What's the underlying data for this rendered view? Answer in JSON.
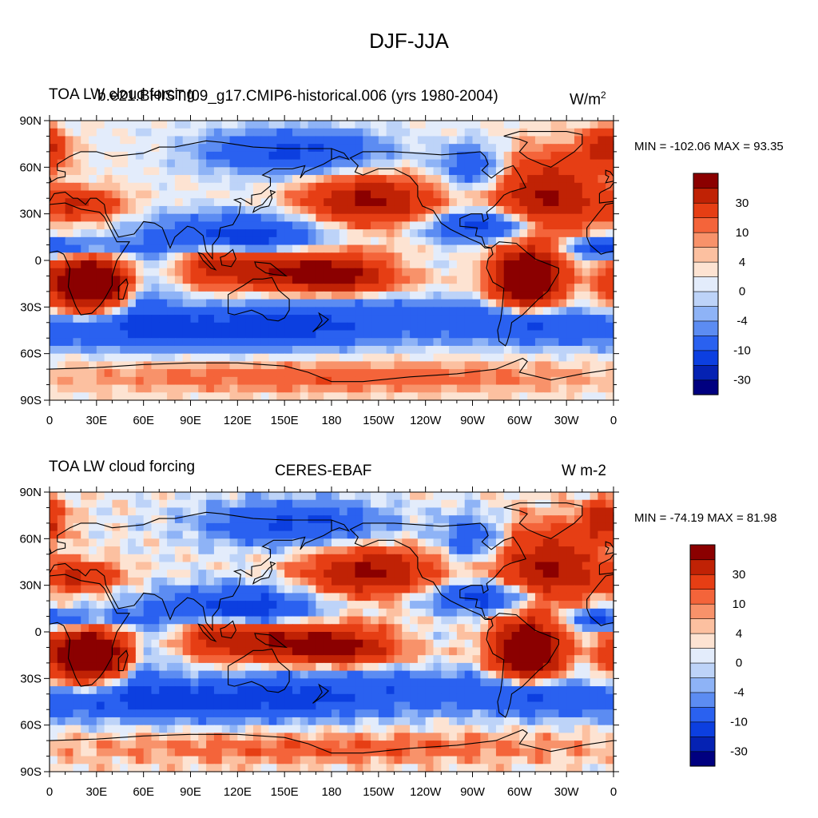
{
  "figure_title": "DJF-JJA",
  "chart_data": [
    {
      "type": "heatmap",
      "subtype": "filled-contour-world-map",
      "title_left": "TOA LW cloud forcing",
      "title_center": "b.e21.BHIST.f09_g17.CMIP6-historical.006 (yrs 1980-2004)",
      "units_base": "W/m",
      "units_exp": "2",
      "min_label": "MIN = -102.06",
      "max_label": "MAX =  93.35",
      "min": -102.06,
      "max": 93.35,
      "x_ticks": [
        "0",
        "30E",
        "60E",
        "90E",
        "120E",
        "150E",
        "180",
        "150W",
        "120W",
        "90W",
        "60W",
        "30W",
        "0"
      ],
      "y_ticks": [
        "90N",
        "60N",
        "30N",
        "0",
        "30S",
        "60S",
        "90S"
      ],
      "colorbar_levels": [
        -50,
        -30,
        -20,
        -10,
        -6,
        -4,
        -2,
        0,
        2,
        4,
        6,
        10,
        20,
        30,
        50
      ],
      "colorbar_labels": [
        "30",
        "10",
        "4",
        "0",
        "-4",
        "-10",
        "-30"
      ]
    },
    {
      "type": "heatmap",
      "subtype": "filled-contour-world-map",
      "title_left": "TOA LW cloud forcing",
      "title_center": "CERES-EBAF",
      "units": "W m-2",
      "min_label": "MIN = -74.19",
      "max_label": "MAX =  81.98",
      "min": -74.19,
      "max": 81.98,
      "x_ticks": [
        "0",
        "30E",
        "60E",
        "90E",
        "120E",
        "150E",
        "180",
        "150W",
        "120W",
        "90W",
        "60W",
        "30W",
        "0"
      ],
      "y_ticks": [
        "90N",
        "60N",
        "30N",
        "0",
        "30S",
        "60S",
        "90S"
      ],
      "colorbar_levels": [
        -50,
        -30,
        -20,
        -10,
        -6,
        -4,
        -2,
        0,
        2,
        4,
        6,
        10,
        20,
        30,
        50
      ],
      "colorbar_labels": [
        "30",
        "10",
        "4",
        "0",
        "-4",
        "-10",
        "-30"
      ]
    }
  ],
  "colors": {
    "palette": [
      "#000080",
      "#0522b3",
      "#0c3fe0",
      "#2a61f0",
      "#5c8cf2",
      "#8eb3f6",
      "#bdd3f8",
      "#e3ecfb",
      "#fde3d2",
      "#fcc0a0",
      "#f8926a",
      "#f4643a",
      "#e63e14",
      "#c02205",
      "#8b0000"
    ],
    "land_outline": "#000000"
  }
}
